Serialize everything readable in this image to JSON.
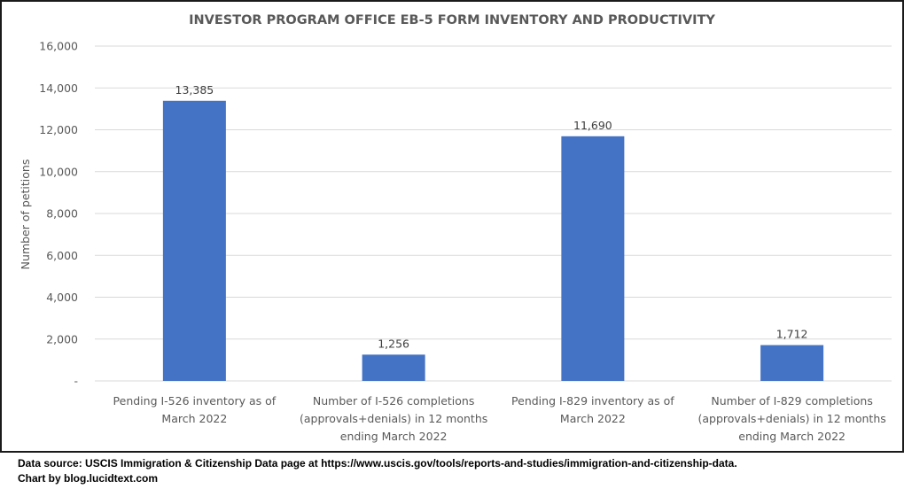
{
  "chart_data": {
    "type": "bar",
    "title": "INVESTOR PROGRAM OFFICE EB-5 FORM INVENTORY AND PRODUCTIVITY",
    "xlabel": "",
    "ylabel": "Number of petitions",
    "ylim": [
      0,
      16000
    ],
    "ytick_step": 2000,
    "ytick_labels": [
      "-",
      "2,000",
      "4,000",
      "6,000",
      "8,000",
      "10,000",
      "12,000",
      "14,000",
      "16,000"
    ],
    "grid": true,
    "legend": "none",
    "bar_color": "#4472C4",
    "categories": [
      [
        "Pending I-526 inventory as of",
        "March 2022"
      ],
      [
        "Number of I-526 completions",
        "(approvals+denials) in 12 months",
        "ending March 2022"
      ],
      [
        "Pending I-829 inventory as of",
        "March 2022"
      ],
      [
        "Number of I-829 completions",
        "(approvals+denials) in 12 months",
        "ending March 2022"
      ]
    ],
    "values": [
      13385,
      1256,
      11690,
      1712
    ],
    "data_labels": [
      "13,385",
      "1,256",
      "11,690",
      "1,712"
    ]
  },
  "footer": {
    "source": "Data source: USCIS Immigration & Citizenship Data page at https://www.uscis.gov/tools/reports-and-studies/immigration-and-citizenship-data.",
    "credit": "Chart by blog.lucidtext.com"
  }
}
